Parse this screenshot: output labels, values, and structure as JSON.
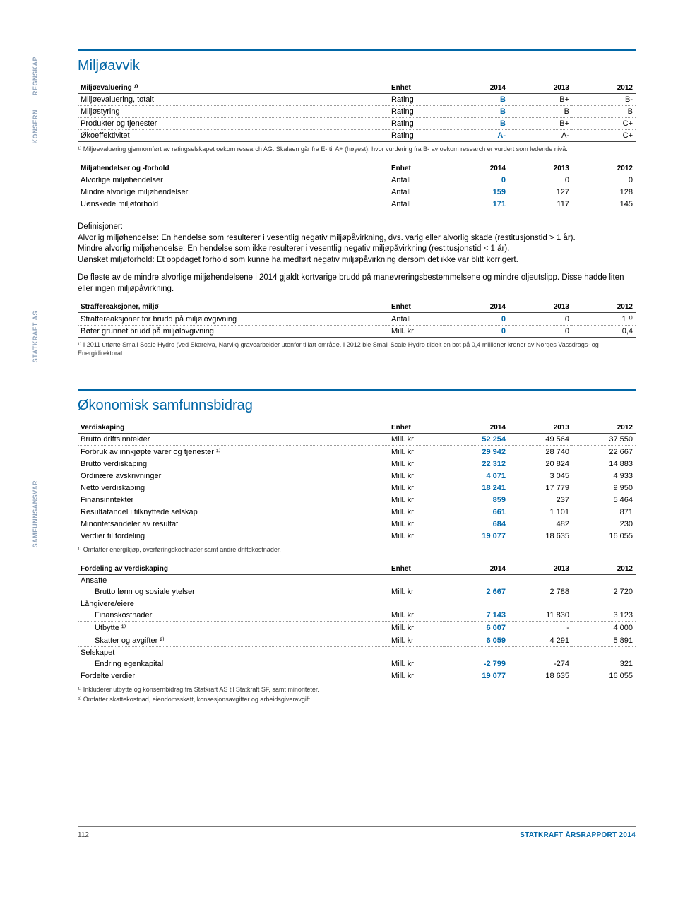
{
  "sidebar": {
    "regnskap": "REGNSKAP",
    "konsern": "KONSERN",
    "statkraft_as": "STATKRAFT AS",
    "samfunnsansvar": "SAMFUNNSANSVAR"
  },
  "section1": {
    "title": "Miljøavvik",
    "table_eval": {
      "header": {
        "label": "Miljøevaluering ¹⁾",
        "unit": "Enhet",
        "y2014": "2014",
        "y2013": "2013",
        "y2012": "2012"
      },
      "rows": [
        {
          "label": "Miljøevaluering, totalt",
          "unit": "Rating",
          "y2014": "B",
          "y2013": "B+",
          "y2012": "B-"
        },
        {
          "label": "Miljøstyring",
          "unit": "Rating",
          "y2014": "B",
          "y2013": "B",
          "y2012": "B"
        },
        {
          "label": "Produkter og tjenester",
          "unit": "Rating",
          "y2014": "B",
          "y2013": "B+",
          "y2012": "C+"
        },
        {
          "label": "Økoeffektivitet",
          "unit": "Rating",
          "y2014": "A-",
          "y2013": "A-",
          "y2012": "C+"
        }
      ],
      "footnote": "¹⁾ Miljøevaluering gjennomført av ratingselskapet oekom research AG. Skalaen går fra E- til A+ (høyest), hvor vurdering fra B- av oekom research er vurdert som ledende nivå."
    },
    "table_events": {
      "header": {
        "label": "Miljøhendelser og -forhold",
        "unit": "Enhet",
        "y2014": "2014",
        "y2013": "2013",
        "y2012": "2012"
      },
      "rows": [
        {
          "label": "Alvorlige miljøhendelser",
          "unit": "Antall",
          "y2014": "0",
          "y2013": "0",
          "y2012": "0"
        },
        {
          "label": "Mindre alvorlige miljøhendelser",
          "unit": "Antall",
          "y2014": "159",
          "y2013": "127",
          "y2012": "128"
        },
        {
          "label": "Uønskede miljøforhold",
          "unit": "Antall",
          "y2014": "171",
          "y2013": "117",
          "y2012": "145"
        }
      ]
    },
    "definitions": {
      "p1": "Definisjoner:",
      "p2": "Alvorlig miljøhendelse: En hendelse som resulterer i vesentlig negativ miljøpåvirkning, dvs. varig eller alvorlig skade (restitusjonstid > 1 år).",
      "p3": "Mindre alvorlig miljøhendelse: En hendelse som ikke resulterer i vesentlig negativ miljøpåvirkning (restitusjonstid < 1 år).",
      "p4": "Uønsket miljøforhold: Et oppdaget forhold som kunne ha medført negativ miljøpåvirkning dersom det ikke var blitt korrigert.",
      "p5": "De fleste av de mindre alvorlige miljøhendelsene i 2014 gjaldt kortvarige brudd på manøvreringsbestemmelsene og mindre oljeutslipp. Disse hadde liten eller ingen miljøpåvirkning."
    },
    "table_penalty": {
      "header": {
        "label": "Straffereaksjoner, miljø",
        "unit": "Enhet",
        "y2014": "2014",
        "y2013": "2013",
        "y2012": "2012"
      },
      "rows": [
        {
          "label": "Straffereaksjoner for brudd på miljølovgivning",
          "unit": "Antall",
          "y2014": "0",
          "y2013": "0",
          "y2012": "1 ¹⁾"
        },
        {
          "label": "Bøter grunnet brudd på miljølovgivning",
          "unit": "Mill. kr",
          "y2014": "0",
          "y2013": "0",
          "y2012": "0,4"
        }
      ],
      "footnote": "¹⁾ I 2011 utførte Small Scale Hydro (ved Skarelva, Narvik) gravearbeider utenfor tillatt område. I 2012 ble Small Scale Hydro tildelt en bot på 0,4 millioner kroner av Norges Vassdrags- og Energidirektorat."
    }
  },
  "section2": {
    "title": "Økonomisk samfunnsbidrag",
    "table_verdi": {
      "header": {
        "label": "Verdiskaping",
        "unit": "Enhet",
        "y2014": "2014",
        "y2013": "2013",
        "y2012": "2012"
      },
      "rows": [
        {
          "label": "Brutto driftsinntekter",
          "unit": "Mill. kr",
          "y2014": "52 254",
          "y2013": "49 564",
          "y2012": "37 550"
        },
        {
          "label": "Forbruk av innkjøpte varer og tjenester ¹⁾",
          "unit": "Mill. kr",
          "y2014": "29 942",
          "y2013": "28 740",
          "y2012": "22 667"
        },
        {
          "label": "Brutto verdiskaping",
          "unit": "Mill. kr",
          "y2014": "22 312",
          "y2013": "20 824",
          "y2012": "14 883"
        },
        {
          "label": "Ordinære avskrivninger",
          "unit": "Mill. kr",
          "y2014": "4 071",
          "y2013": "3 045",
          "y2012": "4 933"
        },
        {
          "label": "Netto verdiskaping",
          "unit": "Mill. kr",
          "y2014": "18 241",
          "y2013": "17 779",
          "y2012": "9 950"
        },
        {
          "label": "Finansinntekter",
          "unit": "Mill. kr",
          "y2014": "859",
          "y2013": "237",
          "y2012": "5 464"
        },
        {
          "label": "Resultatandel i tilknyttede selskap",
          "unit": "Mill. kr",
          "y2014": "661",
          "y2013": "1 101",
          "y2012": "871"
        },
        {
          "label": "Minoritetsandeler av resultat",
          "unit": "Mill. kr",
          "y2014": "684",
          "y2013": "482",
          "y2012": "230"
        },
        {
          "label": "Verdier til fordeling",
          "unit": "Mill. kr",
          "y2014": "19 077",
          "y2013": "18 635",
          "y2012": "16 055"
        }
      ],
      "footnote": "¹⁾ Omfatter energikjøp, overføringskostnader samt andre driftskostnader."
    },
    "table_fordeling": {
      "header": {
        "label": "Fordeling av verdiskaping",
        "unit": "Enhet",
        "y2014": "2014",
        "y2013": "2013",
        "y2012": "2012"
      },
      "rows": [
        {
          "label": "Ansatte",
          "unit": "",
          "y2014": "",
          "y2013": "",
          "y2012": "",
          "indent": false,
          "group": true
        },
        {
          "label": "Brutto lønn og sosiale ytelser",
          "unit": "Mill. kr",
          "y2014": "2 667",
          "y2013": "2 788",
          "y2012": "2 720",
          "indent": true
        },
        {
          "label": "Långivere/eiere",
          "unit": "",
          "y2014": "",
          "y2013": "",
          "y2012": "",
          "group": true
        },
        {
          "label": "Finanskostnader",
          "unit": "Mill. kr",
          "y2014": "7 143",
          "y2013": "11 830",
          "y2012": "3 123",
          "indent": true
        },
        {
          "label": "Utbytte ¹⁾",
          "unit": "Mill. kr",
          "y2014": "6 007",
          "y2013": "-",
          "y2012": "4 000",
          "indent": true
        },
        {
          "label": "Skatter og avgifter ²⁾",
          "unit": "Mill. kr",
          "y2014": "6 059",
          "y2013": "4 291",
          "y2012": "5 891",
          "indent": true
        },
        {
          "label": "Selskapet",
          "unit": "",
          "y2014": "",
          "y2013": "",
          "y2012": "",
          "group": true
        },
        {
          "label": "Endring egenkapital",
          "unit": "Mill. kr",
          "y2014": "-2 799",
          "y2013": "-274",
          "y2012": "321",
          "indent": true
        },
        {
          "label": "Fordelte verdier",
          "unit": "Mill. kr",
          "y2014": "19 077",
          "y2013": "18 635",
          "y2012": "16 055"
        }
      ],
      "footnote1": "¹⁾ Inkluderer utbytte og konsernbidrag fra Statkraft AS til Statkraft SF, samt minoriteter.",
      "footnote2": "²⁾ Omfatter skattekostnad, eiendomsskatt, konsesjonsavgifter og arbeidsgiveravgift."
    }
  },
  "footer": {
    "page": "112",
    "right": "STATKRAFT ÅRSRAPPORT 2014"
  }
}
